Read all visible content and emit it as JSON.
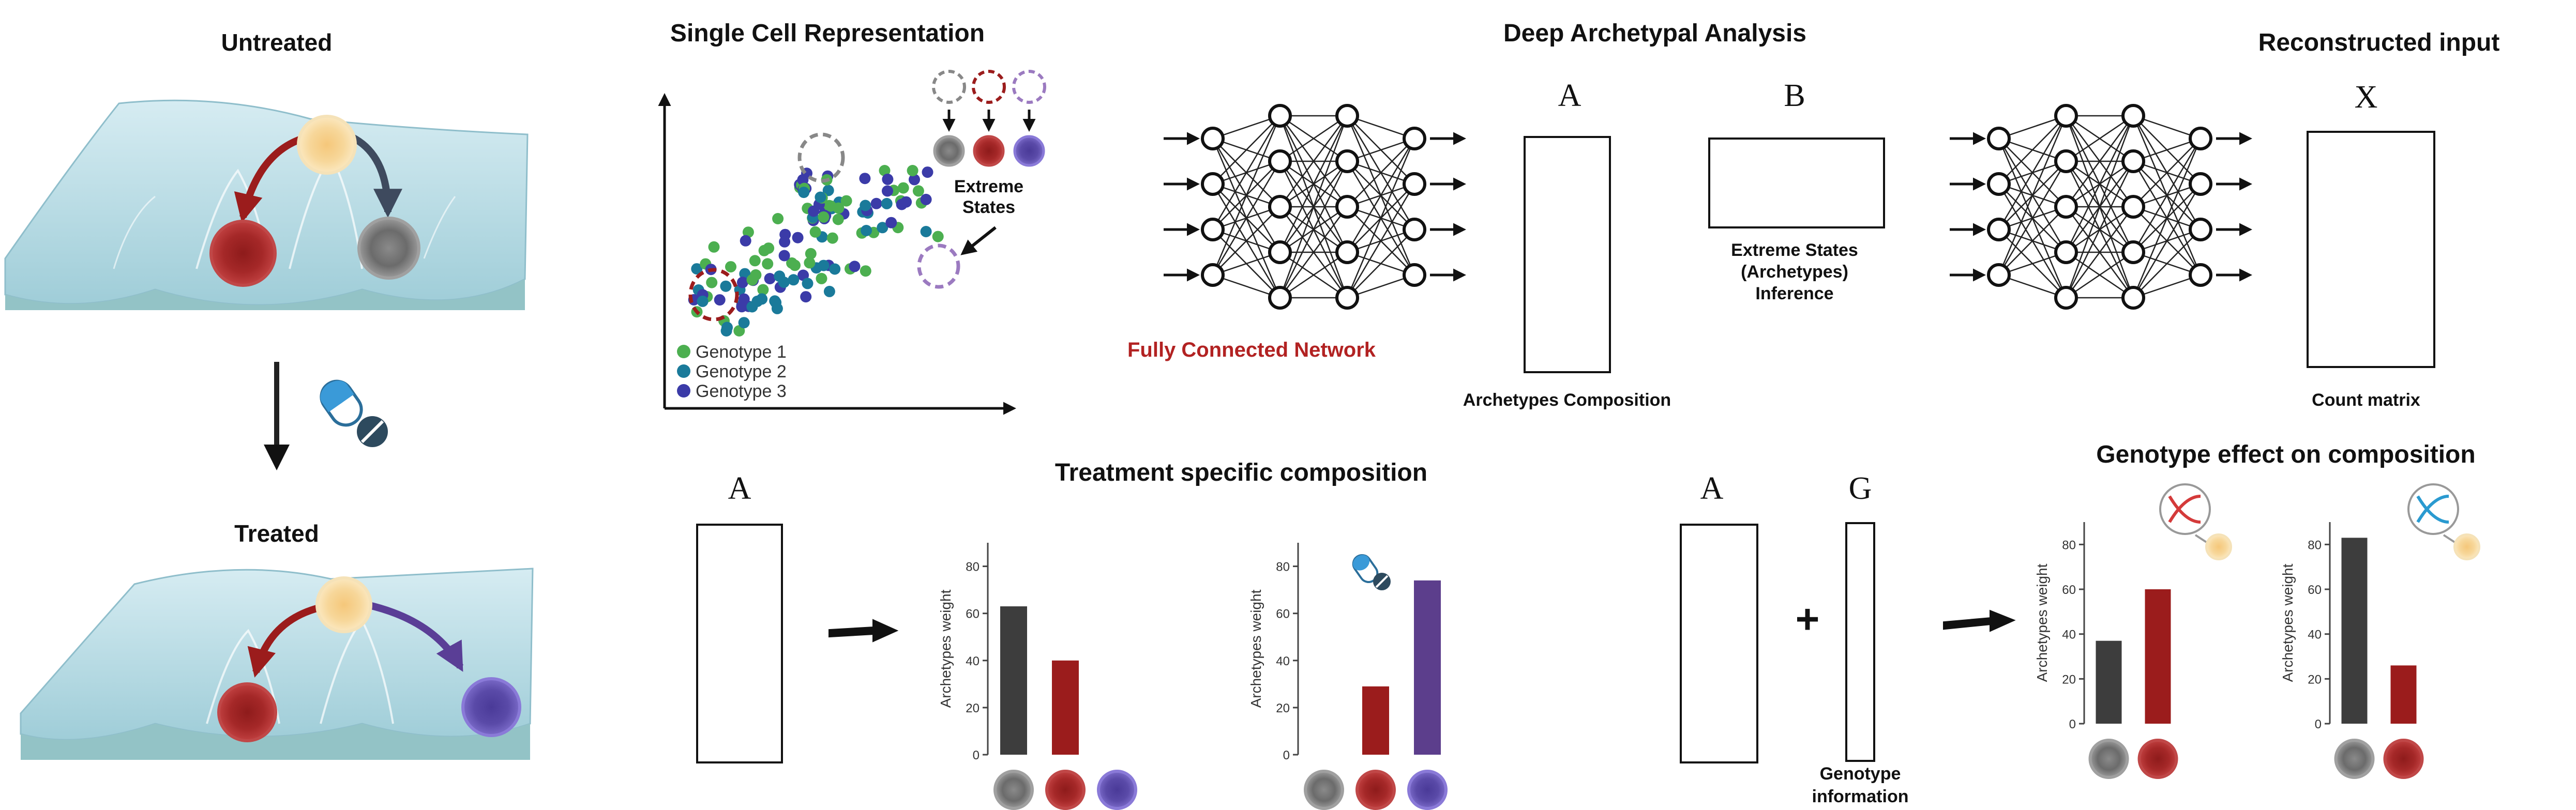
{
  "titles": {
    "untreated": "Untreated",
    "treated": "Treated",
    "single_cell": "Single Cell Representation",
    "deep_aa": "Deep Archetypal Analysis",
    "reconstructed": "Reconstructed input",
    "treatment_comp": "Treatment specific composition",
    "genotype_effect": "Genotype effect on composition"
  },
  "labels": {
    "fully_connected": "Fully Connected Network",
    "extreme_states_1": "Extreme",
    "extreme_states_2": "States",
    "inference_1": "Extreme States",
    "inference_2": "(Archetypes)",
    "inference_3": "Inference",
    "archetypes_composition": "Archetypes Composition",
    "count_matrix": "Count matrix",
    "genotype_info_1": "Genotype",
    "genotype_info_2": "information",
    "plus": "+"
  },
  "matrix_letters": {
    "a1": "A",
    "b": "B",
    "x": "X",
    "a2": "A",
    "a3": "A",
    "g": "G"
  },
  "legend": [
    {
      "label": "Genotype 1",
      "color": "#4caf50"
    },
    {
      "label": "Genotype 2",
      "color": "#1a7a9a"
    },
    {
      "label": "Genotype 3",
      "color": "#3b3ba8"
    }
  ],
  "colors": {
    "grey_cell": "#6b6b6b",
    "red_cell": "#a02424",
    "purple_cell": "#5a4aa8",
    "yellow_cell": "#f7d79a",
    "bar_grey": "#3d3d3d",
    "bar_red": "#9b1c1c",
    "bar_purple": "#5c3e8c",
    "fc_red": "#b22222"
  },
  "chart_data": [
    {
      "type": "bar",
      "ylabel": "Archetypes weight",
      "yticks": [
        0,
        20,
        40,
        60,
        80
      ],
      "ylim": [
        0,
        90
      ],
      "categories": [
        "grey",
        "red",
        "purple"
      ],
      "values": [
        63,
        40,
        0
      ]
    },
    {
      "type": "bar",
      "ylabel": "Archetypes weight",
      "yticks": [
        0,
        20,
        40,
        60,
        80
      ],
      "ylim": [
        0,
        90
      ],
      "categories": [
        "grey",
        "red",
        "purple"
      ],
      "values": [
        0,
        29,
        74
      ]
    },
    {
      "type": "bar",
      "ylabel": "Archetypes weight",
      "yticks": [
        0,
        20,
        40,
        60,
        80
      ],
      "ylim": [
        0,
        90
      ],
      "categories": [
        "grey",
        "red"
      ],
      "values": [
        37,
        60
      ]
    },
    {
      "type": "bar",
      "ylabel": "Archetypes weight",
      "yticks": [
        0,
        20,
        40,
        60,
        80
      ],
      "ylim": [
        0,
        90
      ],
      "categories": [
        "grey",
        "red"
      ],
      "values": [
        83,
        26
      ]
    }
  ]
}
